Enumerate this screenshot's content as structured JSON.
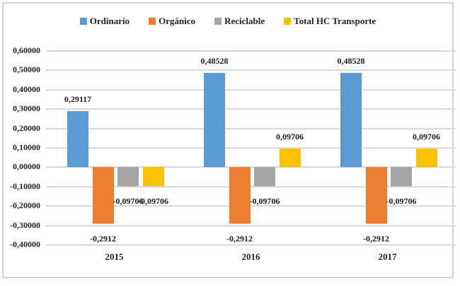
{
  "chart_data": {
    "type": "bar",
    "title": "",
    "categories": [
      "2015",
      "2016",
      "2017"
    ],
    "series": [
      {
        "name": "Ordinario",
        "color": "#5B9BD5",
        "values": [
          0.29117,
          0.48528,
          0.48528
        ],
        "labels": [
          "0,29117",
          "0,48528",
          "0,48528"
        ]
      },
      {
        "name": "Orgánico",
        "color": "#ED7D31",
        "values": [
          -0.2912,
          -0.2912,
          -0.2912
        ],
        "labels": [
          "-0,2912",
          "-0,2912",
          "-0,2912"
        ]
      },
      {
        "name": "Reciclable",
        "color": "#A5A5A5",
        "values": [
          -0.09706,
          -0.09706,
          -0.09706
        ],
        "labels": [
          "-0,09706",
          "-0,09706",
          "-0,09706"
        ]
      },
      {
        "name": "Total HC Transporte",
        "color": "#FFC000",
        "values": [
          -0.09706,
          0.09706,
          0.09706
        ],
        "labels": [
          "-0,09706",
          "0,09706",
          "0,09706"
        ]
      }
    ],
    "y_axis": {
      "min": -0.4,
      "max": 0.6,
      "step": 0.1,
      "tick_labels": [
        "0,60000",
        "0,50000",
        "0,40000",
        "0,30000",
        "0,20000",
        "0,10000",
        "0,00000",
        "-0,10000",
        "-0,20000",
        "-0,30000",
        "-0,40000"
      ]
    },
    "xlabel": "",
    "ylabel": "",
    "legend_position": "top",
    "grid": true,
    "gridline_color": "#D9D9D9",
    "frame_border_color": "#D2D2D2",
    "text_color": "#1F1F1F"
  }
}
